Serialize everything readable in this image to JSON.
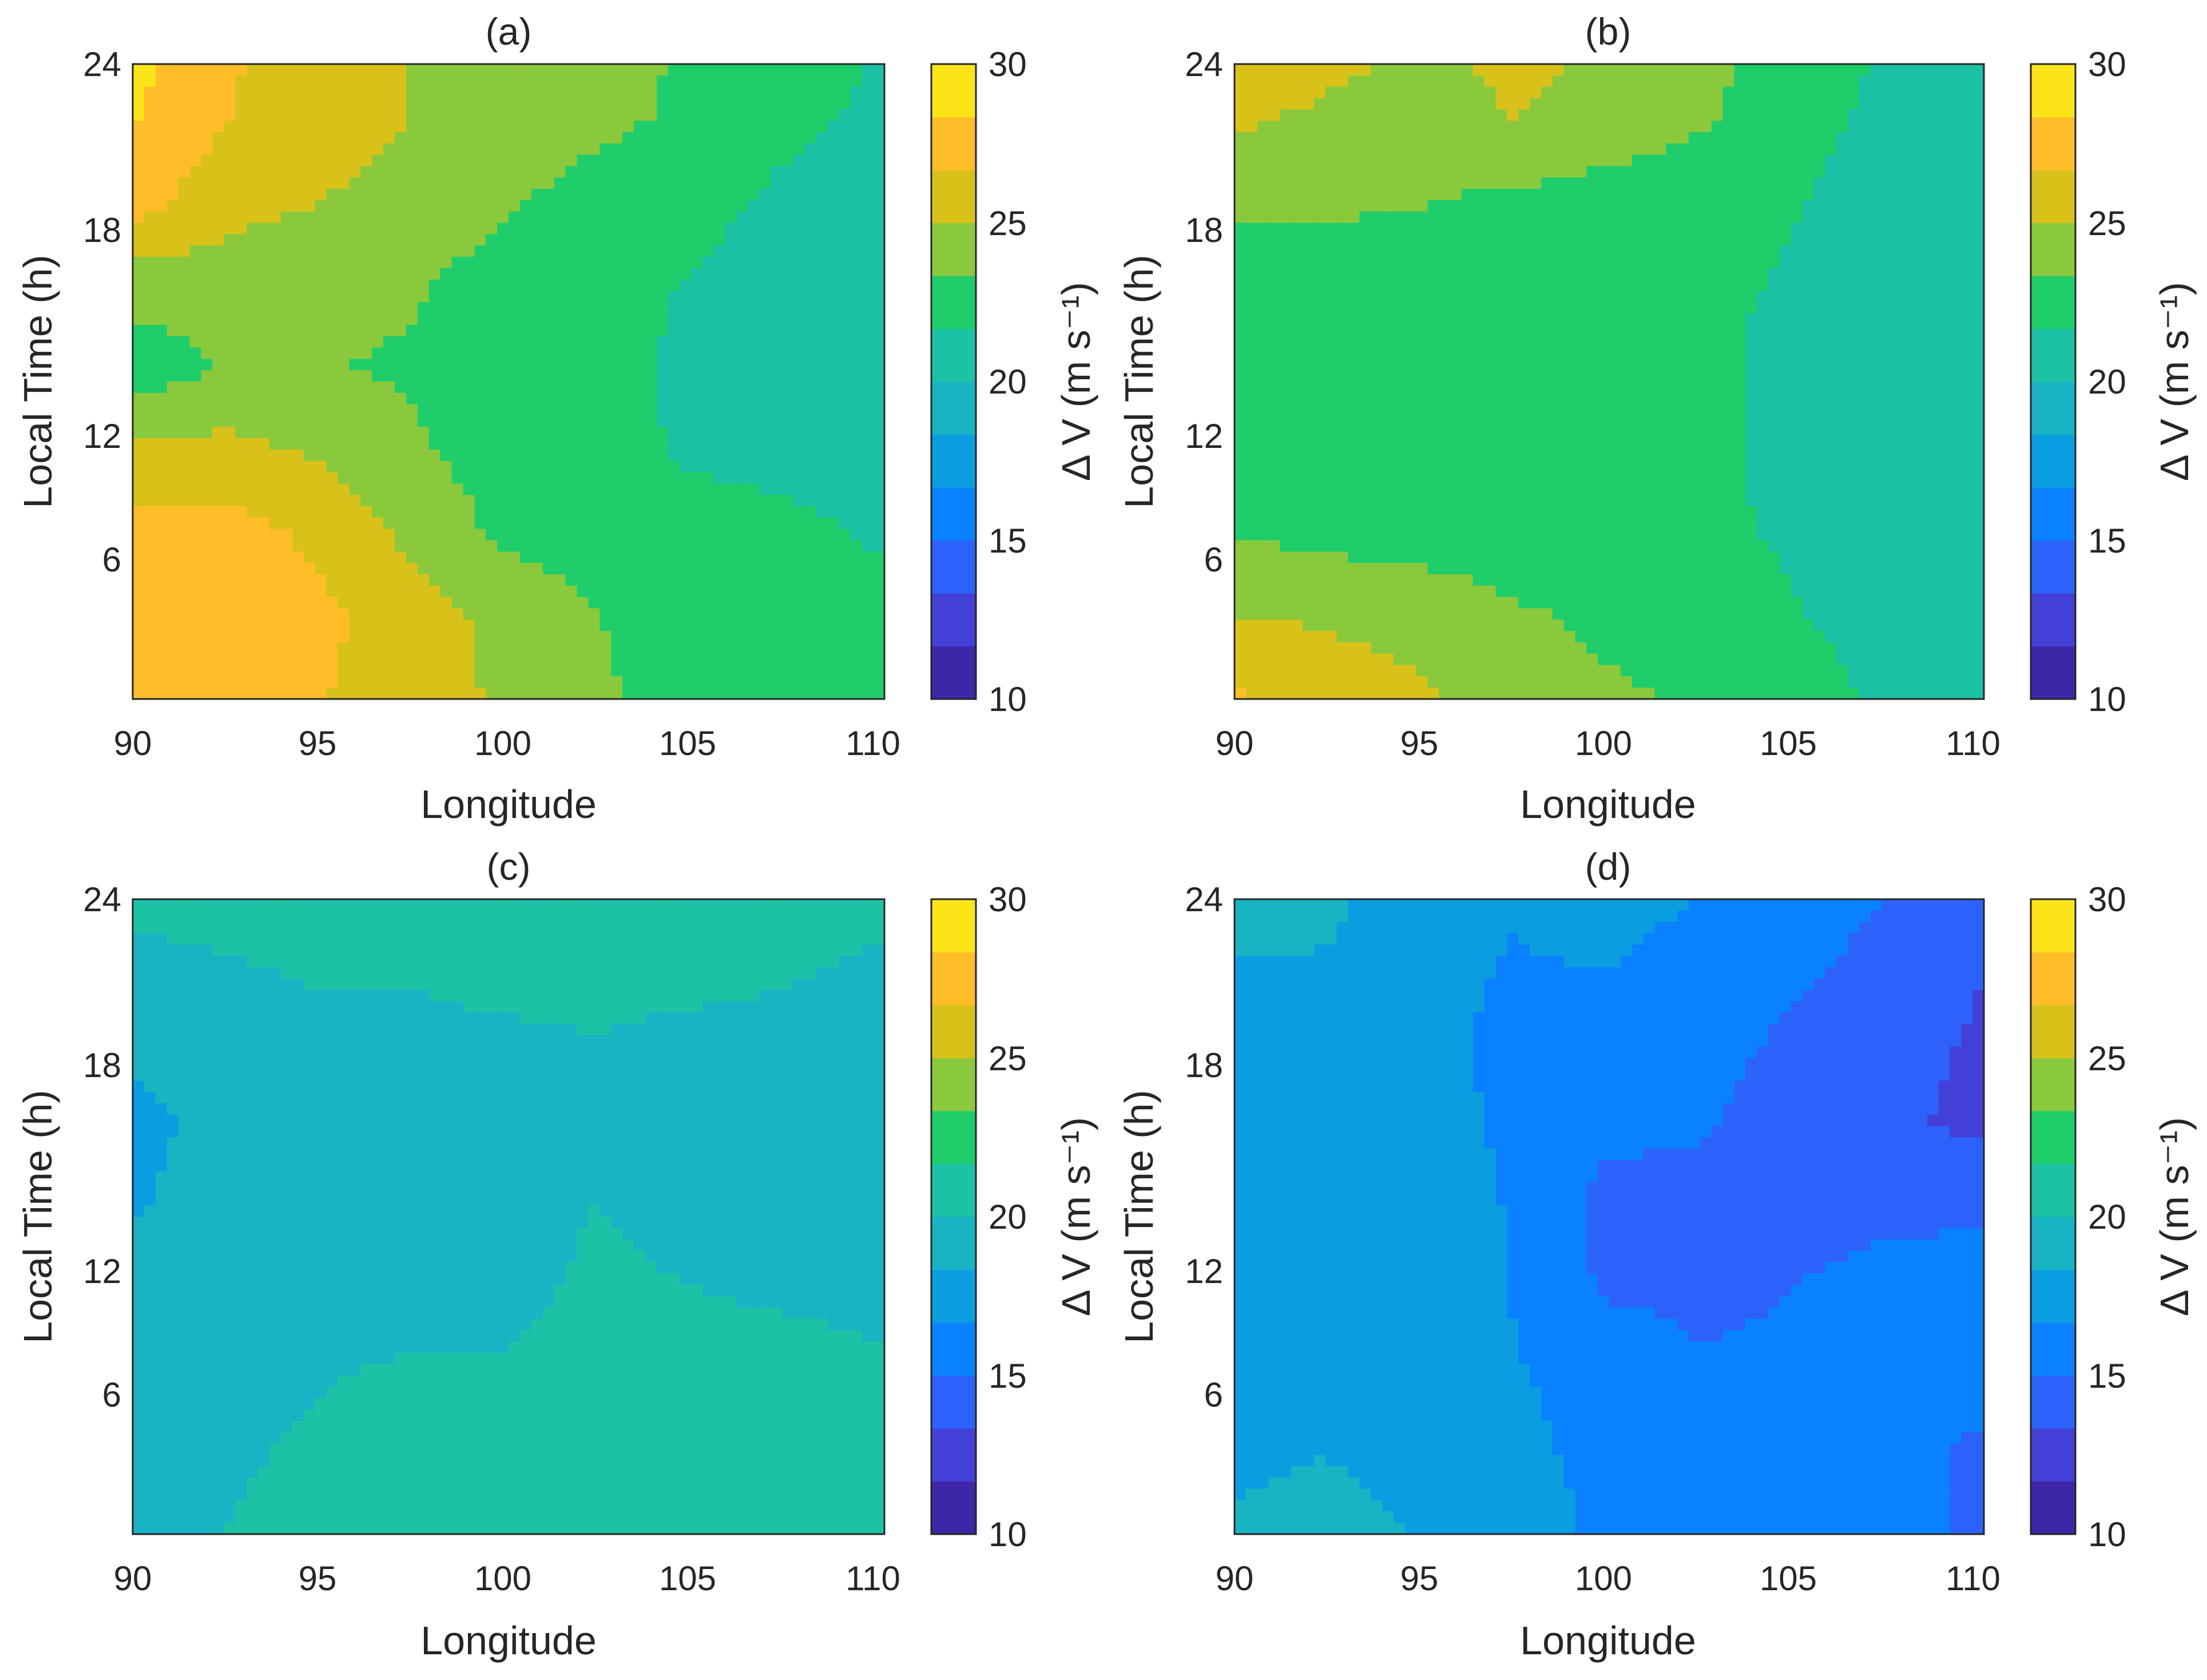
{
  "colorbar_colors": [
    "#3e26a8",
    "#4340d7",
    "#2d62fa",
    "#0a81ff",
    "#0a9ee0",
    "#19b3c4",
    "#1cc2a5",
    "#1fcd6a",
    "#8bc93c",
    "#d8c21a",
    "#ffbd2a",
    "#fbe519"
  ],
  "chart_data": [
    {
      "type": "heatmap",
      "title": "(a)",
      "xlabel": "Longitude",
      "ylabel": "Local Time (h)",
      "colorbar_label": "Δ V (m s⁻¹)",
      "xlim": [
        90,
        110.3
      ],
      "ylim": [
        1,
        24
      ],
      "clim": [
        10,
        30
      ],
      "xticks": [
        "90",
        "95",
        "100",
        "105",
        "110"
      ],
      "yticks": [
        "6",
        "12",
        "18",
        "24"
      ],
      "cticks": [
        "10",
        "15",
        "20",
        "25",
        "30"
      ],
      "x": [
        90,
        92.5,
        95,
        97.5,
        100,
        102.5,
        105,
        107.5,
        110.3
      ],
      "y": [
        1,
        4,
        7,
        10,
        13,
        16,
        19,
        22,
        24
      ],
      "z": [
        [
          28.3,
          27.2,
          26.8,
          25.8,
          24.8,
          23.6,
          22.6,
          22.1,
          21.8
        ],
        [
          28.3,
          27.3,
          27.0,
          26.0,
          24.4,
          23.4,
          22.5,
          22.1,
          21.8
        ],
        [
          27.5,
          27.3,
          26.4,
          24.6,
          23.0,
          22.6,
          22.1,
          21.8,
          21.6
        ],
        [
          25.3,
          25.5,
          24.8,
          23.6,
          22.6,
          22.3,
          21.5,
          21.5,
          21.5
        ],
        [
          22.4,
          23.4,
          23.4,
          23.1,
          22.6,
          22.5,
          21.2,
          21.0,
          21.2
        ],
        [
          24.0,
          24.3,
          24.0,
          23.6,
          22.4,
          22.3,
          21.6,
          21.1,
          21.1
        ],
        [
          27.5,
          25.5,
          25.0,
          24.8,
          23.6,
          22.6,
          22.1,
          21.4,
          21.2
        ],
        [
          28.5,
          26.8,
          25.3,
          25.0,
          24.6,
          23.8,
          23.0,
          22.0,
          21.4
        ],
        [
          28.8,
          27.0,
          25.3,
          25.0,
          24.7,
          24.3,
          23.0,
          22.1,
          21.6
        ]
      ]
    },
    {
      "type": "heatmap",
      "title": "(b)",
      "xlabel": "Longitude",
      "ylabel": "Local Time (h)",
      "colorbar_label": "Δ V (m s⁻¹)",
      "xlim": [
        90,
        110.3
      ],
      "ylim": [
        1,
        24
      ],
      "clim": [
        10,
        30
      ],
      "xticks": [
        "90",
        "95",
        "100",
        "105",
        "110"
      ],
      "yticks": [
        "6",
        "12",
        "18",
        "24"
      ],
      "cticks": [
        "10",
        "15",
        "20",
        "25",
        "30"
      ],
      "x": [
        90,
        92.5,
        95,
        97.5,
        100,
        102.5,
        105,
        107.5,
        110.3
      ],
      "y": [
        1,
        4,
        7,
        10,
        13,
        16,
        19,
        22,
        24
      ],
      "z": [
        [
          27.0,
          25.8,
          25.2,
          24.6,
          23.6,
          23.2,
          22.8,
          21.3,
          20.8
        ],
        [
          25.0,
          24.8,
          24.5,
          23.6,
          23.0,
          22.6,
          21.8,
          21.0,
          20.6
        ],
        [
          23.3,
          22.8,
          22.6,
          22.4,
          22.1,
          22.0,
          21.5,
          20.7,
          20.4
        ],
        [
          22.4,
          22.4,
          22.4,
          22.4,
          22.3,
          22.2,
          21.2,
          20.6,
          20.2
        ],
        [
          21.6,
          22.4,
          22.5,
          22.5,
          22.4,
          22.2,
          21.1,
          20.7,
          20.2
        ],
        [
          22.2,
          22.4,
          22.5,
          22.5,
          22.3,
          22.1,
          21.5,
          20.8,
          20.3
        ],
        [
          23.6,
          23.6,
          23.4,
          23.0,
          22.6,
          22.3,
          21.8,
          21.0,
          20.4
        ],
        [
          25.3,
          24.6,
          24.4,
          25.0,
          24.4,
          23.6,
          22.4,
          21.3,
          20.6
        ],
        [
          26.8,
          25.4,
          24.6,
          25.3,
          24.8,
          23.9,
          22.7,
          21.5,
          20.8
        ]
      ]
    },
    {
      "type": "heatmap",
      "title": "(c)",
      "xlabel": "Longitude",
      "ylabel": "Local Time (h)",
      "colorbar_label": "Δ V (m s⁻¹)",
      "xlim": [
        90,
        110.3
      ],
      "ylim": [
        1,
        24
      ],
      "clim": [
        10,
        30
      ],
      "xticks": [
        "90",
        "95",
        "100",
        "105",
        "110"
      ],
      "yticks": [
        "6",
        "12",
        "18",
        "24"
      ],
      "cticks": [
        "10",
        "15",
        "20",
        "25",
        "30"
      ],
      "x": [
        90,
        92.5,
        95,
        97.5,
        100,
        102.5,
        105,
        107.5,
        110.3
      ],
      "y": [
        1,
        4,
        7,
        10,
        13,
        16,
        19,
        22,
        24
      ],
      "z": [
        [
          19.6,
          20.0,
          20.5,
          21.0,
          20.6,
          20.4,
          21.0,
          21.2,
          20.8
        ],
        [
          19.4,
          19.8,
          20.2,
          20.4,
          20.2,
          20.4,
          21.0,
          21.4,
          20.8
        ],
        [
          19.3,
          19.6,
          19.9,
          20.1,
          20.1,
          20.3,
          20.4,
          20.4,
          20.1
        ],
        [
          18.8,
          19.3,
          19.5,
          19.5,
          19.7,
          20.2,
          20.0,
          19.8,
          19.7
        ],
        [
          18.2,
          18.9,
          19.3,
          19.4,
          19.5,
          20.0,
          19.7,
          19.5,
          19.3
        ],
        [
          18.0,
          18.7,
          19.2,
          19.4,
          19.5,
          19.8,
          19.4,
          19.2,
          18.8
        ],
        [
          18.6,
          19.2,
          19.6,
          19.7,
          19.8,
          20.0,
          19.7,
          19.6,
          19.3
        ],
        [
          19.7,
          20.0,
          20.3,
          20.2,
          20.6,
          20.4,
          20.6,
          20.3,
          19.9
        ],
        [
          20.4,
          20.5,
          20.6,
          20.6,
          21.3,
          20.8,
          21.2,
          20.8,
          20.3
        ]
      ]
    },
    {
      "type": "heatmap",
      "title": "(d)",
      "xlabel": "Longitude",
      "ylabel": "Local Time (h)",
      "colorbar_label": "Δ V (m s⁻¹)",
      "xlim": [
        90,
        110.3
      ],
      "ylim": [
        1,
        24
      ],
      "clim": [
        10,
        30
      ],
      "xticks": [
        "90",
        "95",
        "100",
        "105",
        "110"
      ],
      "yticks": [
        "6",
        "12",
        "18",
        "24"
      ],
      "cticks": [
        "10",
        "15",
        "20",
        "25",
        "30"
      ],
      "x": [
        90,
        92.5,
        95,
        97.5,
        100,
        102.5,
        105,
        107.5,
        110.3
      ],
      "y": [
        1,
        4,
        7,
        10,
        13,
        16,
        19,
        22,
        24
      ],
      "z": [
        [
          18.5,
          18.8,
          18.3,
          17.5,
          16.4,
          15.8,
          15.7,
          15.8,
          14.5
        ],
        [
          18.1,
          18.3,
          17.8,
          17.1,
          16.2,
          15.6,
          15.5,
          15.4,
          14.8
        ],
        [
          17.6,
          17.9,
          17.6,
          16.8,
          16.0,
          15.2,
          15.2,
          15.4,
          15.4
        ],
        [
          17.0,
          17.5,
          17.4,
          16.6,
          14.8,
          14.6,
          15.0,
          15.4,
          15.6
        ],
        [
          16.8,
          17.2,
          17.2,
          16.6,
          14.6,
          14.5,
          14.4,
          14.7,
          14.7
        ],
        [
          16.8,
          17.3,
          17.4,
          16.4,
          15.4,
          15.2,
          14.4,
          13.8,
          12.8
        ],
        [
          17.2,
          17.6,
          17.5,
          16.0,
          16.2,
          15.6,
          14.8,
          14.4,
          13.0
        ],
        [
          18.4,
          18.3,
          17.5,
          16.6,
          16.8,
          16.2,
          15.4,
          14.7,
          13.5
        ],
        [
          18.8,
          18.6,
          17.6,
          16.8,
          17.4,
          16.6,
          15.8,
          15.0,
          14.2
        ]
      ]
    }
  ]
}
